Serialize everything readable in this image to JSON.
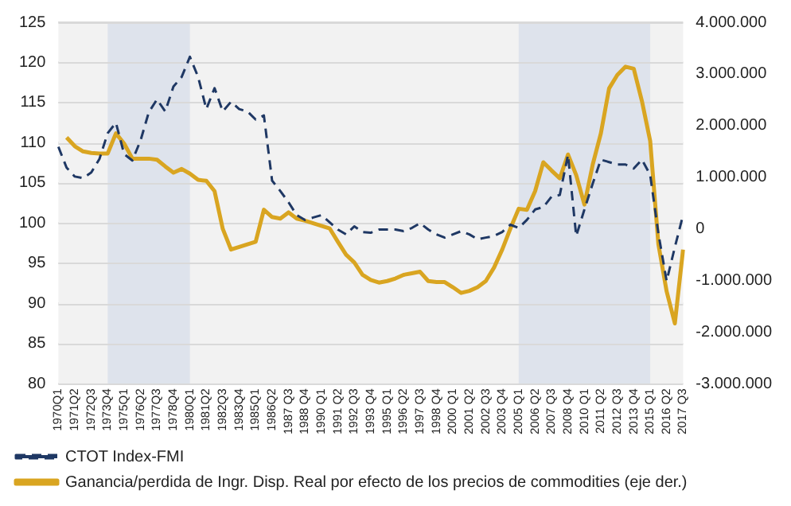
{
  "chart_data": {
    "type": "line",
    "categories": [
      "1970Q1",
      null,
      "1971Q2",
      null,
      "1972Q3",
      null,
      "1973Q4",
      null,
      "1975Q1",
      null,
      "1976Q2",
      null,
      "1977Q3",
      null,
      "1978Q4",
      null,
      "1980Q1",
      null,
      "1981Q2",
      null,
      "1982Q3",
      null,
      "1983Q4",
      null,
      "1985Q1",
      null,
      "1986Q2",
      null,
      "1987 Q3",
      null,
      "1988 Q4",
      null,
      "1990 Q1",
      null,
      "1991 Q2",
      null,
      "1992 Q3",
      null,
      "1993 Q4",
      null,
      "1995 Q1",
      null,
      "1996 Q2",
      null,
      "1997 Q3",
      null,
      "1998 Q4",
      null,
      "2000 Q1",
      null,
      "2001 Q2",
      null,
      "2002 Q3",
      null,
      "2003 Q4",
      null,
      "2005 Q1",
      null,
      "2006 Q2",
      null,
      "2007 Q3",
      null,
      "2008 Q4",
      null,
      "2010 Q1",
      null,
      "2011 Q2",
      null,
      "2012 Q3",
      null,
      "2013 Q4",
      null,
      "2015 Q1",
      null,
      "2016 Q2",
      null,
      "2017 Q3"
    ],
    "series": [
      {
        "name": "CTOT Index-FMI",
        "color": "#1f3864",
        "line_style": "dashed",
        "values": [
          109.5,
          106.9,
          105.8,
          105.6,
          106.3,
          108,
          111.2,
          112.5,
          108.6,
          107.8,
          110.3,
          113.8,
          115.4,
          113.9,
          117,
          118.2,
          120.7,
          118.2,
          114.2,
          116.8,
          113.9,
          115.1,
          114.2,
          113.9,
          112.9,
          113.4,
          105.3,
          104,
          102.6,
          101,
          100.4,
          100.7,
          101,
          100.1,
          99.2,
          98.6,
          99.6,
          98.9,
          98.8,
          99.2,
          99.2,
          99.2,
          99,
          99.4,
          100,
          99.2,
          98.6,
          98.2,
          98.6,
          99,
          98.6,
          98,
          98.2,
          98.4,
          98.9,
          99.8,
          99.4,
          100.4,
          101.7,
          102,
          103.3,
          103.5,
          108.5,
          98.4,
          101.7,
          104.9,
          107.9,
          107.6,
          107.3,
          107.3,
          106.8,
          107.9,
          106,
          98.7,
          92.8,
          97,
          101
        ]
      },
      {
        "name": "Ganancia/perdida de Ingr. Disp. Real por efecto de los precios de commodities (eje der.)",
        "color": "#d9a521",
        "line_style": "solid",
        "axis": "y2",
        "values": [
          null,
          1770000,
          1600000,
          1500000,
          1470000,
          1460000,
          1460000,
          1850000,
          1650000,
          1360000,
          1360000,
          1360000,
          1340000,
          1210000,
          1090000,
          1160000,
          1070000,
          950000,
          930000,
          730000,
          0,
          -400000,
          -350000,
          -300000,
          -250000,
          370000,
          230000,
          200000,
          320000,
          200000,
          160000,
          110000,
          60000,
          10000,
          -250000,
          -500000,
          -650000,
          -890000,
          -990000,
          -1040000,
          -1010000,
          -960000,
          -890000,
          -860000,
          -830000,
          -1010000,
          -1030000,
          -1030000,
          -1130000,
          -1240000,
          -1200000,
          -1130000,
          -1010000,
          -750000,
          -400000,
          10000,
          390000,
          370000,
          730000,
          1290000,
          1130000,
          980000,
          1440000,
          1040000,
          470000,
          1240000,
          1850000,
          2720000,
          2980000,
          3140000,
          3100000,
          2470000,
          1700000,
          -300000,
          -1210000,
          -1830000,
          -400000
        ]
      }
    ],
    "ylim": [
      80,
      125
    ],
    "yticks": [
      80,
      85,
      90,
      95,
      100,
      105,
      110,
      115,
      120,
      125
    ],
    "y2lim": [
      -3000000,
      4000000
    ],
    "y2ticks": [
      {
        "value": -3000000,
        "label": "-3.000.000"
      },
      {
        "value": -2000000,
        "label": "-2.000.000"
      },
      {
        "value": -1000000,
        "label": "-1.000.000"
      },
      0,
      {
        "value": 1000000,
        "label": "1.000.000"
      },
      {
        "value": 2000000,
        "label": "2.000.000"
      },
      {
        "value": 3000000,
        "label": "3.000.000"
      },
      {
        "value": 4000000,
        "label": "4.000.000"
      }
    ],
    "bands": [
      {
        "axis": "x",
        "from": "1973Q4",
        "to": "1980Q1",
        "color": "#dee3ec"
      },
      {
        "axis": "x",
        "from": "2005 Q1",
        "to": "2015 Q1",
        "color": "#dee3ec"
      }
    ],
    "grid": "y",
    "legend": "bottom",
    "marker": "none"
  }
}
